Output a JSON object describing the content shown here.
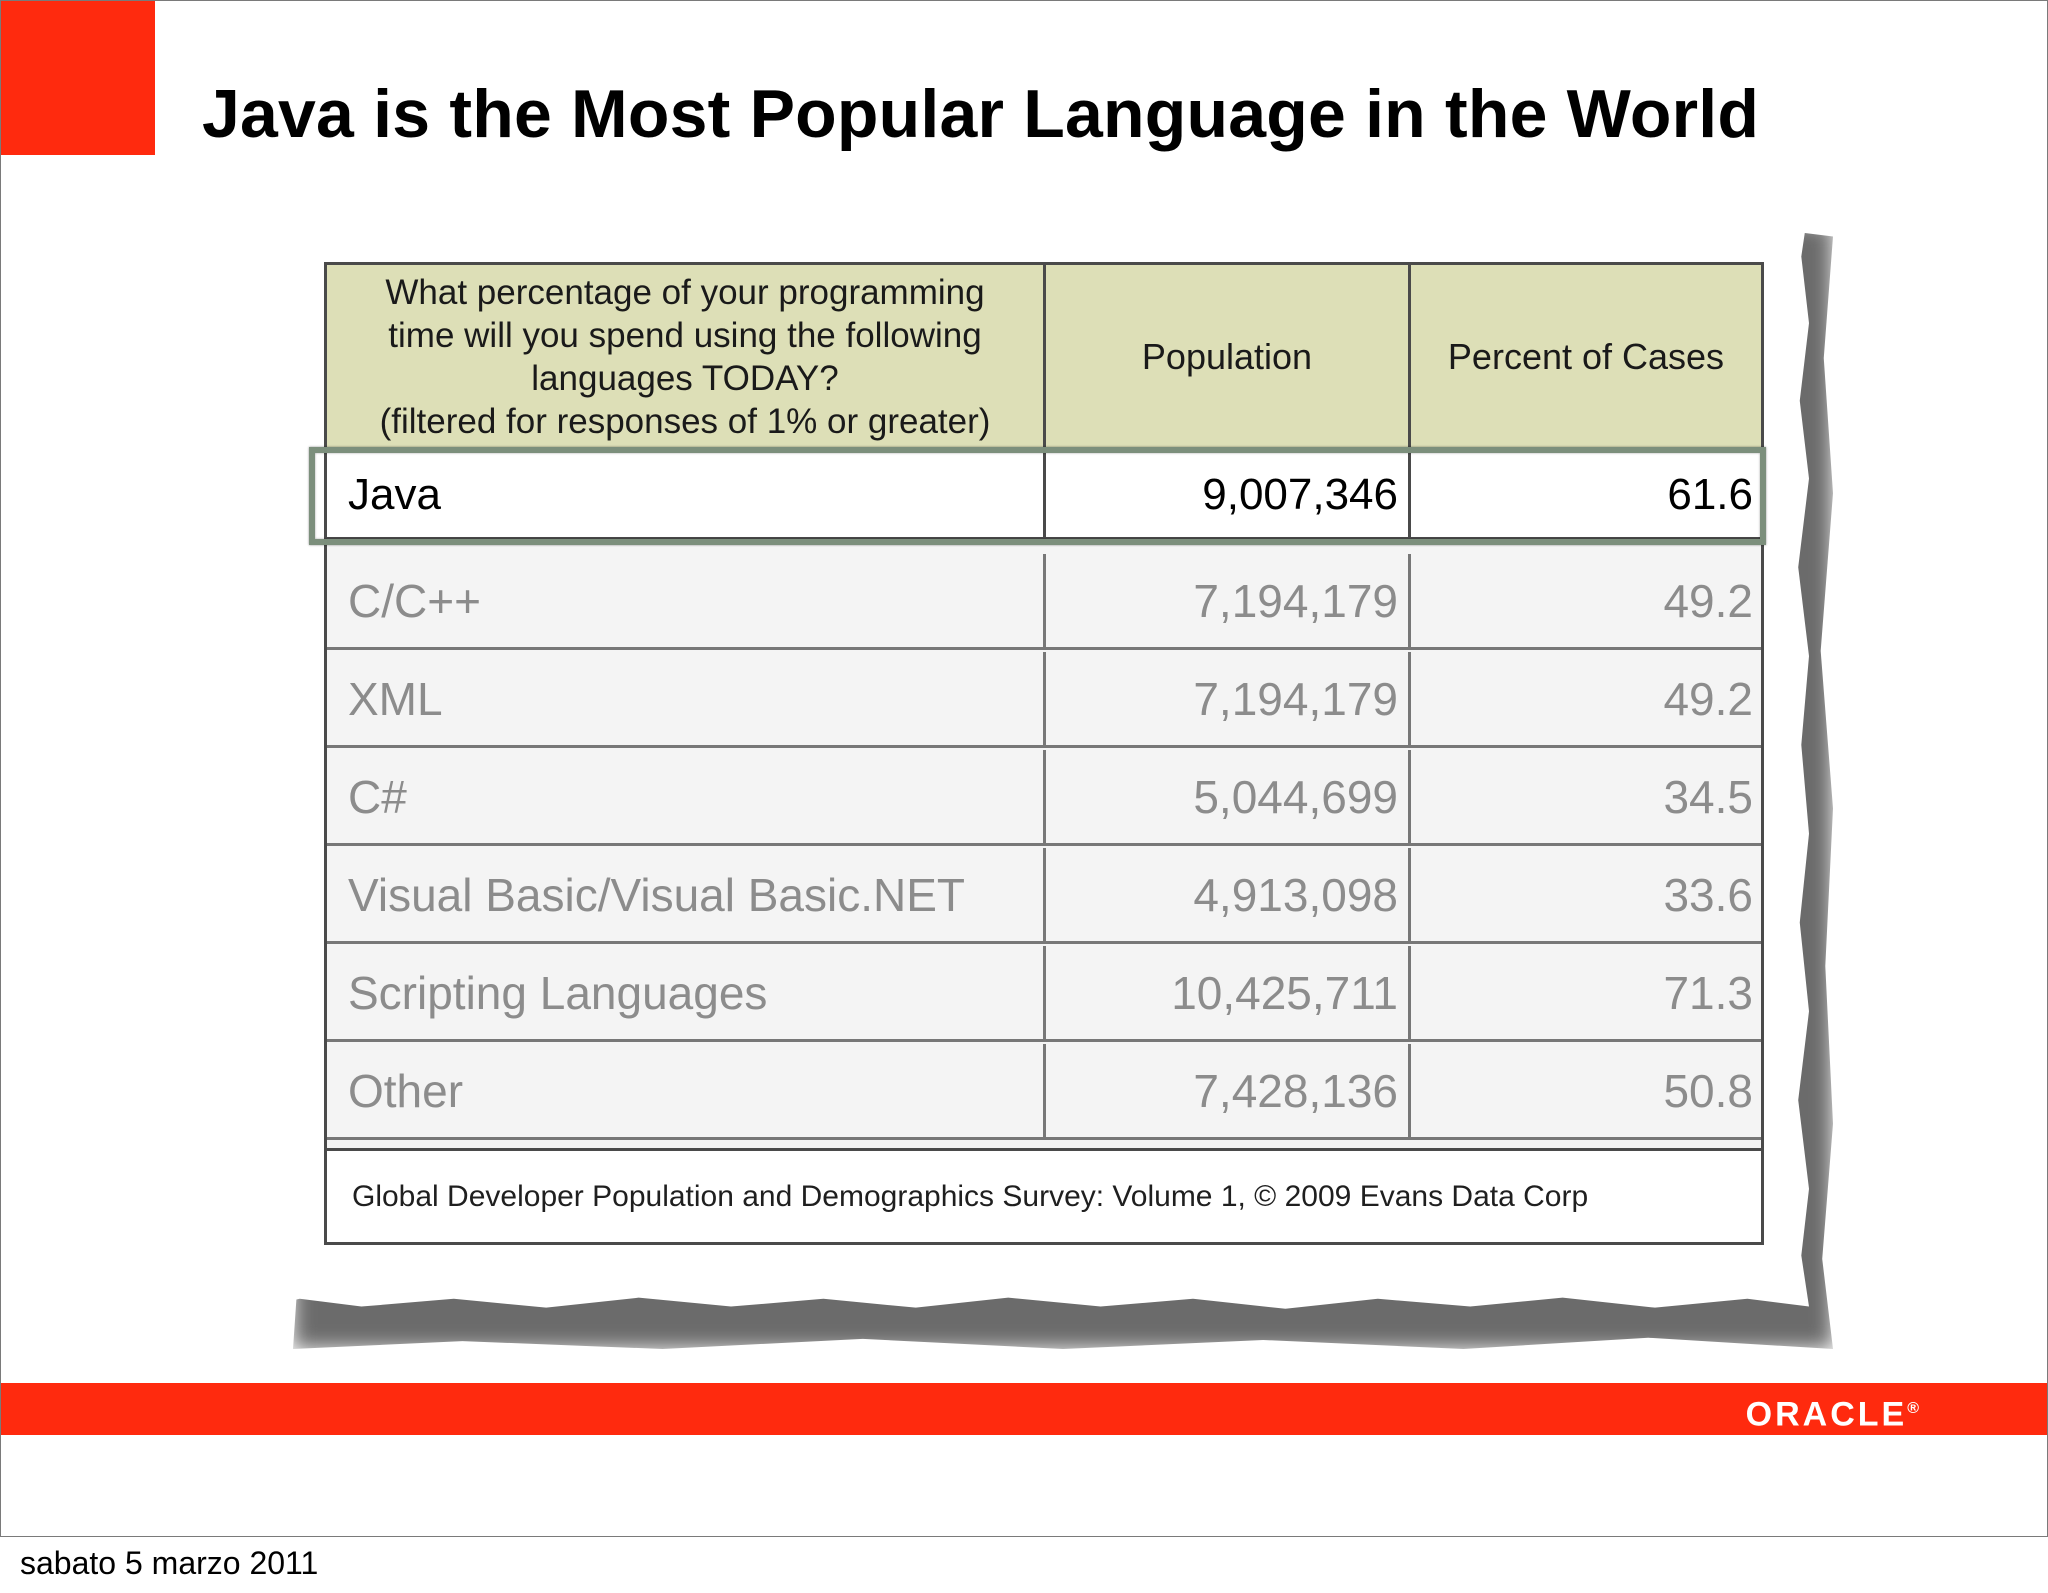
{
  "slide": {
    "title": "Java is the Most Popular Language in the World"
  },
  "table": {
    "headers": {
      "question": "What percentage of your programming\ntime will you spend using the following\nlanguages TODAY?\n(filtered for responses of 1% or greater)",
      "population": "Population",
      "percent": "Percent of Cases"
    },
    "rows": [
      {
        "language": "Java",
        "population": "9,007,346",
        "percent": "61.6"
      },
      {
        "language": "C/C++",
        "population": "7,194,179",
        "percent": "49.2"
      },
      {
        "language": "XML",
        "population": "7,194,179",
        "percent": "49.2"
      },
      {
        "language": "C#",
        "population": "5,044,699",
        "percent": "34.5"
      },
      {
        "language": "Visual Basic/Visual Basic.NET",
        "population": "4,913,098",
        "percent": "33.6"
      },
      {
        "language": "Scripting Languages",
        "population": "10,425,711",
        "percent": "71.3"
      },
      {
        "language": "Other",
        "population": "7,428,136",
        "percent": "50.8"
      }
    ],
    "source": "Global Developer Population and Demographics Survey: Volume 1, © 2009 Evans Data Corp"
  },
  "footer": {
    "logo": "ORACLE",
    "logo_trademark": "®"
  },
  "caption": {
    "date": "sabato 5 marzo 2011"
  },
  "colors": {
    "brand_red": "#ff2a0e",
    "header_fill": "#dddfb7",
    "highlight_frame": "#7c8f7c"
  }
}
